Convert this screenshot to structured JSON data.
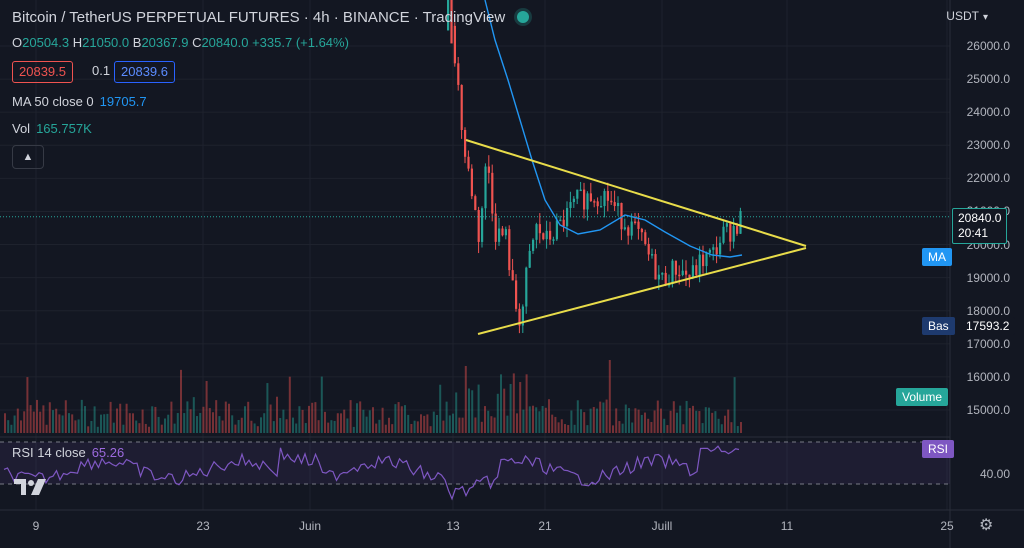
{
  "header": {
    "title": "Bitcoin / TetherUS PERPETUAL FUTURES · 4h · BINANCE · TradingView"
  },
  "ohlc": {
    "o": "20504.3",
    "h": "21050.0",
    "b": "20367.9",
    "c": "20840.0",
    "chg": "+335.7 (+1.64%)"
  },
  "bidask": {
    "bid": "20839.5",
    "spread": "0.1",
    "ask": "20839.6"
  },
  "indicators": {
    "ma_label": "MA 50 close 0",
    "ma_value": "19705.7",
    "vol_label": "Vol",
    "vol_value": "165.757K",
    "rsi_label": "RSI 14 close",
    "rsi_value": "65.26"
  },
  "collapse_icon": "chevron-up-icon",
  "axis": {
    "currency": "USDT"
  },
  "labels": {
    "price": "20840.0",
    "countdown": "20:41",
    "ma": "MA",
    "bas": "Bas",
    "bas_value": "17593.2",
    "volume": "Volume",
    "rsi": "RSI"
  },
  "colors": {
    "up": "#26a69a",
    "down": "#ef5350",
    "ma": "#2196f3",
    "triangle": "#e8dc4a",
    "rsi": "#7e57c2",
    "background": "#131722"
  },
  "chart_data": {
    "type": "candlestick",
    "interval": "4h",
    "y_ticks": [
      26000,
      25000,
      24000,
      23000,
      22000,
      21000,
      20000,
      19000,
      18000,
      17000,
      16000,
      15000
    ],
    "ylim": [
      14500,
      26700
    ],
    "x_ticks": [
      "9",
      "23",
      "Juin",
      "13",
      "21",
      "Juill",
      "11",
      "25"
    ],
    "rsi_ticks": [
      "40.00"
    ],
    "last_price": 20840.0,
    "low_price": 17593.2,
    "ma50": 19705.7,
    "rsi": 65.26,
    "triangle": {
      "upper": [
        [
          "~13 Juin",
          23150
        ],
        [
          "apex",
          19900
        ]
      ],
      "lower": [
        [
          "~14 Juin",
          17350
        ],
        [
          "apex",
          19900
        ]
      ]
    }
  }
}
